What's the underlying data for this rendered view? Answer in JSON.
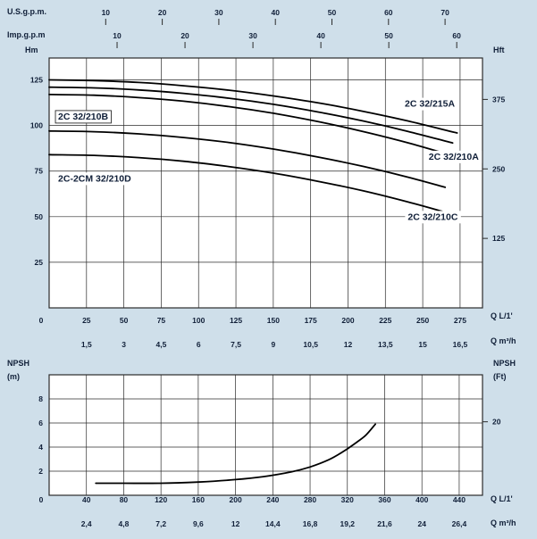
{
  "theme": {
    "page_bg": "#cfdfea",
    "plot_bg": "#ffffff",
    "grid_color": "#2b2b2b",
    "text_color": "#101f38",
    "curve_color": "#000000"
  },
  "chart_data": [
    {
      "type": "line",
      "name": "head-capacity-curves",
      "xlim": [
        0,
        290
      ],
      "ylim": [
        0,
        137
      ],
      "grid": {
        "x": [
          0,
          25,
          50,
          75,
          100,
          125,
          150,
          175,
          200,
          225,
          250,
          275
        ],
        "y": [
          0,
          25,
          50,
          75,
          100,
          125
        ]
      },
      "axes": {
        "usgpm": {
          "label": "U.S.g.p.m.",
          "ticks": [
            "10",
            "20",
            "30",
            "40",
            "50",
            "60",
            "70"
          ],
          "values": [
            10,
            20,
            30,
            40,
            50,
            60,
            70
          ],
          "liters_per_unit": 3.785
        },
        "impgpm": {
          "label": "Imp.g.p.m",
          "ticks": [
            "10",
            "20",
            "30",
            "40",
            "50",
            "60"
          ],
          "values": [
            10,
            20,
            30,
            40,
            50,
            60
          ],
          "liters_per_unit": 4.546
        },
        "hm": {
          "label": "Hm",
          "ticks": [
            "125",
            "100",
            "75",
            "50",
            "25"
          ],
          "values": [
            125,
            100,
            75,
            50,
            25
          ]
        },
        "hft": {
          "label": "Hft",
          "ticks": [
            "375",
            "250",
            "125"
          ],
          "values_m": [
            114.3,
            76.2,
            38.1
          ]
        },
        "lpm": {
          "label": "Q L/1'",
          "ticks": [
            "0",
            "25",
            "50",
            "75",
            "100",
            "125",
            "150",
            "175",
            "200",
            "225",
            "250",
            "275"
          ],
          "values": [
            0,
            25,
            50,
            75,
            100,
            125,
            150,
            175,
            200,
            225,
            250,
            275
          ]
        },
        "m3h": {
          "label": "Q m³/h",
          "ticks": [
            "1,5",
            "3",
            "4,5",
            "6",
            "7,5",
            "9",
            "10,5",
            "12",
            "13,5",
            "15",
            "16,5"
          ],
          "positions_lpm": [
            25,
            50,
            75,
            100,
            125,
            150,
            175,
            200,
            225,
            250,
            275
          ]
        }
      },
      "series": [
        {
          "name": "2C 32/215A",
          "q": [
            0,
            30,
            60,
            90,
            120,
            150,
            180,
            210,
            240,
            273
          ],
          "h": [
            125,
            124.6,
            123.6,
            121.8,
            119.4,
            116.2,
            112.4,
            107.8,
            102.5,
            95.9
          ]
        },
        {
          "name": "2C 32/210A",
          "q": [
            0,
            30,
            60,
            90,
            120,
            150,
            180,
            210,
            240,
            270
          ],
          "h": [
            121,
            120.6,
            119.5,
            117.6,
            115,
            111.6,
            107.4,
            102.5,
            96.8,
            90.4
          ]
        },
        {
          "name": "2C 32/210B",
          "q": [
            0,
            30,
            60,
            90,
            120,
            150,
            180,
            210,
            240,
            267
          ],
          "h": [
            117,
            116.6,
            115.3,
            113.3,
            110.4,
            106.7,
            102.1,
            96.7,
            90.5,
            84.2
          ]
        },
        {
          "name": "2C-2CM 32/210D",
          "q": [
            0,
            30,
            60,
            90,
            120,
            150,
            180,
            210,
            240,
            265
          ],
          "h": [
            97,
            96.6,
            95.4,
            93.4,
            90.7,
            87.1,
            82.7,
            77.6,
            71.7,
            66.1
          ]
        },
        {
          "name": "2C 32/210C",
          "q": [
            0,
            30,
            60,
            90,
            120,
            150,
            180,
            210,
            240,
            263
          ],
          "h": [
            84,
            83.6,
            82.4,
            80.4,
            77.5,
            73.9,
            69.4,
            64.2,
            58.1,
            52.9
          ]
        }
      ],
      "annotations": [
        {
          "text": "2C 32/215A",
          "q": 238,
          "h": 112,
          "boxed": false
        },
        {
          "text": "2C 32/210B",
          "q": 6,
          "h": 105,
          "boxed": true
        },
        {
          "text": "2C 32/210A",
          "q": 254,
          "h": 83,
          "boxed": false
        },
        {
          "text": "2C-2CM 32/210D",
          "q": 6,
          "h": 71,
          "boxed": false
        },
        {
          "text": "2C 32/210C",
          "q": 240,
          "h": 50,
          "boxed": false
        }
      ]
    },
    {
      "type": "line",
      "name": "npsh-curve",
      "xlim": [
        0,
        465
      ],
      "ylim": [
        0,
        10
      ],
      "grid": {
        "x": [
          40,
          80,
          120,
          160,
          200,
          240,
          280,
          320,
          360,
          400,
          440
        ],
        "y": [
          2,
          4,
          6,
          8
        ]
      },
      "axes": {
        "npsh_m": {
          "label": "NPSH",
          "unit": "(m)",
          "zero": "0",
          "ticks": [
            "8",
            "6",
            "4",
            "2"
          ],
          "values": [
            8,
            6,
            4,
            2
          ]
        },
        "npsh_ft": {
          "label": "NPSH",
          "unit": "(Ft)",
          "ticks": [
            "20"
          ],
          "values_m": [
            6.1
          ]
        },
        "lpm": {
          "label": "Q L/1'",
          "ticks": [
            "40",
            "80",
            "120",
            "160",
            "200",
            "240",
            "280",
            "320",
            "360",
            "400",
            "440"
          ],
          "values": [
            40,
            80,
            120,
            160,
            200,
            240,
            280,
            320,
            360,
            400,
            440
          ]
        },
        "m3h": {
          "label": "Q m³/h",
          "ticks": [
            "2,4",
            "4,8",
            "7,2",
            "9,6",
            "12",
            "14,4",
            "16,8",
            "19,2",
            "21,6",
            "24",
            "26,4"
          ],
          "positions_lpm": [
            40,
            80,
            120,
            160,
            200,
            240,
            280,
            320,
            360,
            400,
            440
          ]
        }
      },
      "series": [
        {
          "name": "NPSH",
          "q": [
            50,
            80,
            120,
            160,
            200,
            230,
            260,
            280,
            300,
            315,
            330,
            340,
            350
          ],
          "npsh": [
            1,
            1,
            1,
            1.1,
            1.3,
            1.55,
            1.95,
            2.35,
            2.95,
            3.6,
            4.4,
            5,
            5.9
          ]
        }
      ]
    }
  ]
}
